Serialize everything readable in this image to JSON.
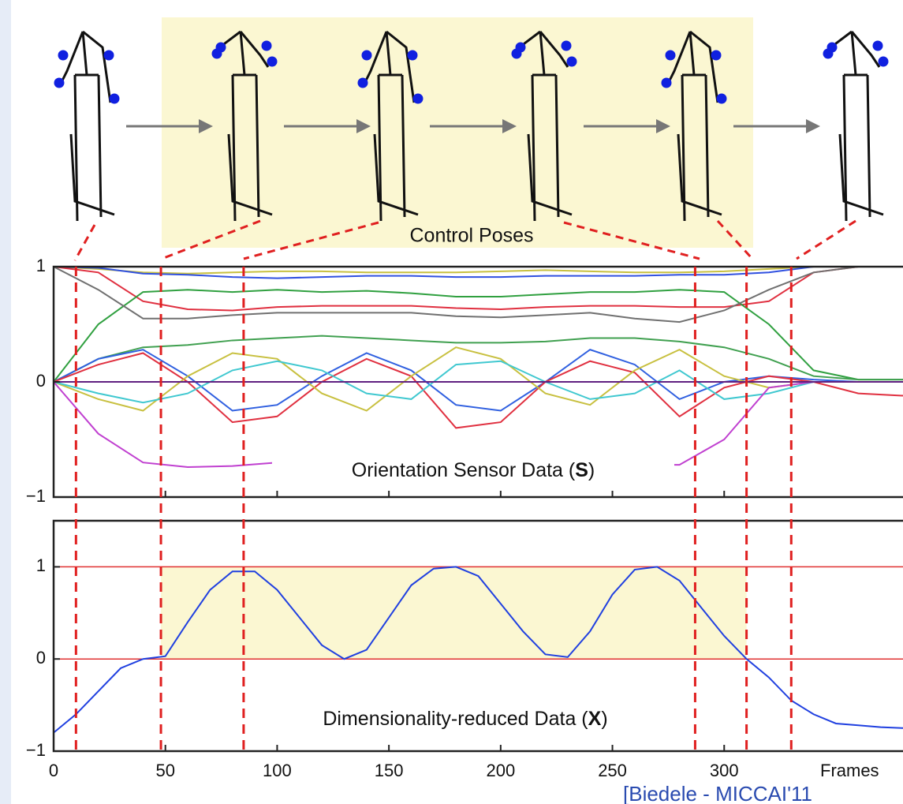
{
  "figure": {
    "label": "Control Poses",
    "citation": "[Biedele - MICCAI'11"
  },
  "chart_data": [
    {
      "type": "line",
      "title_parts": [
        "Orientation Sensor Data (",
        "S",
        ")"
      ],
      "x": [
        0,
        20,
        40,
        60,
        80,
        100,
        120,
        140,
        160,
        180,
        200,
        220,
        240,
        260,
        280,
        300,
        320,
        340,
        360,
        380
      ],
      "xlim": [
        0,
        380
      ],
      "ylim": [
        -1,
        1
      ],
      "yticks": [
        {
          "value": -1,
          "label": "−1"
        },
        0,
        1
      ],
      "xticks": [
        0,
        50,
        100,
        150,
        200,
        250,
        300
      ],
      "control_frames": [
        10,
        48,
        85,
        287,
        310,
        330
      ],
      "series": [
        {
          "color": "#c8c040",
          "values": [
            1,
            0.98,
            0.95,
            0.94,
            0.95,
            0.96,
            0.96,
            0.95,
            0.95,
            0.95,
            0.96,
            0.97,
            0.96,
            0.95,
            0.95,
            0.96,
            0.98,
            1,
            1,
            1
          ]
        },
        {
          "color": "#3050e0",
          "values": [
            1,
            0.99,
            0.94,
            0.93,
            0.91,
            0.9,
            0.91,
            0.92,
            0.92,
            0.91,
            0.91,
            0.92,
            0.92,
            0.92,
            0.93,
            0.93,
            0.95,
            1,
            1,
            1
          ]
        },
        {
          "color": "#e03040",
          "values": [
            1,
            0.95,
            0.7,
            0.63,
            0.62,
            0.65,
            0.66,
            0.66,
            0.66,
            0.64,
            0.63,
            0.65,
            0.66,
            0.66,
            0.65,
            0.65,
            0.7,
            0.95,
            1,
            1
          ]
        },
        {
          "color": "#30a040",
          "values": [
            0,
            0.5,
            0.78,
            0.8,
            0.78,
            0.8,
            0.78,
            0.79,
            0.77,
            0.74,
            0.74,
            0.76,
            0.78,
            0.78,
            0.8,
            0.78,
            0.5,
            0.1,
            0.02,
            0.02
          ]
        },
        {
          "color": "#707070",
          "values": [
            1,
            0.8,
            0.55,
            0.55,
            0.58,
            0.6,
            0.6,
            0.6,
            0.6,
            0.57,
            0.56,
            0.58,
            0.6,
            0.55,
            0.52,
            0.62,
            0.8,
            0.95,
            1,
            1
          ]
        },
        {
          "color": "#40a050",
          "values": [
            0,
            0.2,
            0.3,
            0.32,
            0.36,
            0.38,
            0.4,
            0.38,
            0.36,
            0.34,
            0.34,
            0.35,
            0.38,
            0.38,
            0.35,
            0.3,
            0.2,
            0.05,
            0.02,
            0.02
          ]
        },
        {
          "color": "#3060e0",
          "values": [
            0,
            0.2,
            0.28,
            0.05,
            -0.25,
            -0.2,
            0.05,
            0.25,
            0.1,
            -0.2,
            -0.25,
            0,
            0.28,
            0.15,
            -0.15,
            0,
            0.05,
            0.02,
            0,
            0
          ]
        },
        {
          "color": "#e03040",
          "values": [
            0,
            0.15,
            0.25,
            0,
            -0.35,
            -0.3,
            0,
            0.2,
            0.05,
            -0.4,
            -0.35,
            0,
            0.18,
            0.08,
            -0.3,
            -0.05,
            0.05,
            0,
            -0.1,
            -0.12
          ]
        },
        {
          "color": "#c8c040",
          "values": [
            0,
            -0.15,
            -0.25,
            0.05,
            0.25,
            0.2,
            -0.1,
            -0.25,
            0.05,
            0.3,
            0.2,
            -0.1,
            -0.2,
            0.1,
            0.28,
            0.05,
            -0.05,
            0,
            0,
            0
          ]
        },
        {
          "color": "#40c8d0",
          "values": [
            0,
            -0.1,
            -0.18,
            -0.1,
            0.1,
            0.18,
            0.1,
            -0.1,
            -0.15,
            0.15,
            0.18,
            0,
            -0.15,
            -0.1,
            0.1,
            -0.15,
            -0.1,
            0,
            0,
            0
          ]
        },
        {
          "color": "#c040d0",
          "values": [
            0,
            -0.45,
            -0.7,
            -0.74,
            -0.73,
            -0.7,
            -0.7,
            -0.7,
            -0.7,
            -0.7,
            -0.7,
            -0.7,
            -0.7,
            -0.72,
            -0.72,
            -0.5,
            -0.05,
            0,
            0,
            0
          ]
        },
        {
          "color": "#602080",
          "values": [
            0,
            0,
            0,
            0,
            0,
            0,
            0,
            0,
            0,
            0,
            0,
            0,
            0,
            0,
            0,
            0,
            0,
            0,
            0,
            0
          ]
        }
      ]
    },
    {
      "type": "line",
      "title_parts": [
        "Dimensionality-reduced Data (",
        "X",
        ")"
      ],
      "xlabel": "Frames",
      "x": [
        0,
        10,
        20,
        30,
        40,
        50,
        60,
        70,
        80,
        90,
        100,
        110,
        120,
        130,
        140,
        150,
        160,
        170,
        180,
        190,
        200,
        210,
        220,
        230,
        240,
        250,
        260,
        270,
        280,
        290,
        300,
        310,
        320,
        330,
        340,
        350,
        360,
        370,
        380
      ],
      "xlim": [
        0,
        380
      ],
      "ylim": [
        -1,
        1.5
      ],
      "yticks": [
        {
          "value": -1,
          "label": "−1"
        },
        0,
        1
      ],
      "xticks": [
        0,
        50,
        100,
        150,
        200,
        250,
        300
      ],
      "hlines": [
        0,
        1
      ],
      "hline_color": "#e03030",
      "series": [
        {
          "color": "#2040e0",
          "values": [
            -0.8,
            -0.6,
            -0.35,
            -0.1,
            0,
            0.03,
            0.4,
            0.75,
            0.95,
            0.95,
            0.75,
            0.45,
            0.15,
            0,
            0.1,
            0.45,
            0.8,
            0.98,
            1,
            0.9,
            0.6,
            0.3,
            0.05,
            0.02,
            0.3,
            0.7,
            0.97,
            1,
            0.85,
            0.55,
            0.25,
            0,
            -0.2,
            -0.45,
            -0.6,
            -0.7,
            -0.72,
            -0.74,
            -0.75
          ]
        }
      ]
    }
  ]
}
